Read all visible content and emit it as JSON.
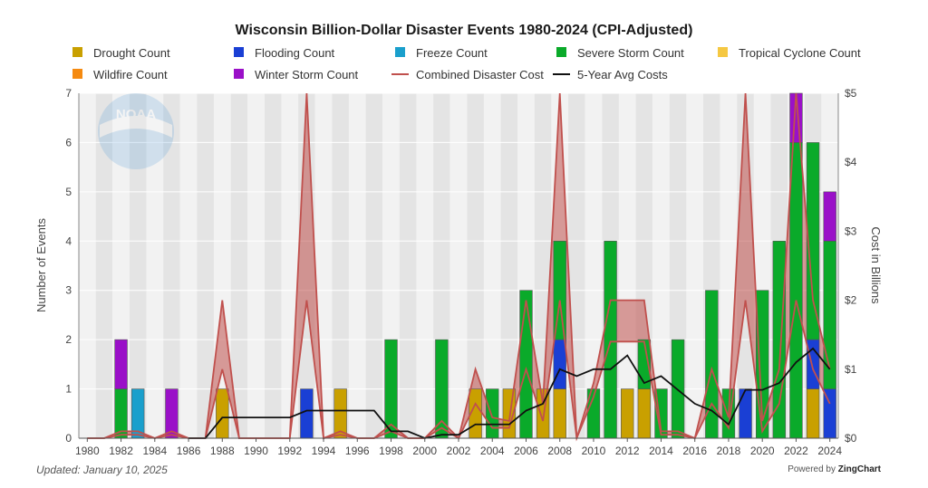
{
  "chart_data": {
    "type": "bar",
    "title": "Wisconsin Billion-Dollar Disaster Events 1980-2024 (CPI-Adjusted)",
    "ylabel": "Number of Events",
    "y2label": "Cost in Billions",
    "ylim": [
      0,
      7
    ],
    "y2lim": [
      0,
      5
    ],
    "y_ticks": [
      "0",
      "1",
      "2",
      "3",
      "4",
      "5",
      "6",
      "7"
    ],
    "y2_ticks": [
      "$0",
      "$1",
      "$2",
      "$3",
      "$4",
      "$5"
    ],
    "x": [
      1980,
      1981,
      1982,
      1983,
      1984,
      1985,
      1986,
      1987,
      1988,
      1989,
      1990,
      1991,
      1992,
      1993,
      1994,
      1995,
      1996,
      1997,
      1998,
      1999,
      2000,
      2001,
      2002,
      2003,
      2004,
      2005,
      2006,
      2007,
      2008,
      2009,
      2010,
      2011,
      2012,
      2013,
      2014,
      2015,
      2016,
      2017,
      2018,
      2019,
      2020,
      2021,
      2022,
      2023,
      2024
    ],
    "x_tick_labels": [
      "1980",
      "1982",
      "1984",
      "1986",
      "1988",
      "1990",
      "1992",
      "1994",
      "1996",
      "1998",
      "2000",
      "2002",
      "2004",
      "2006",
      "2008",
      "2010",
      "2012",
      "2014",
      "2016",
      "2018",
      "2020",
      "2022",
      "2024"
    ],
    "stacked": true,
    "series": [
      {
        "name": "Drought Count",
        "color": "#c9a000",
        "values": [
          0,
          0,
          0,
          0,
          0,
          0,
          0,
          0,
          1,
          0,
          0,
          0,
          0,
          0,
          0,
          1,
          0,
          0,
          0,
          0,
          0,
          0,
          0,
          1,
          0,
          1,
          0,
          1,
          1,
          0,
          0,
          0,
          1,
          1,
          0,
          0,
          0,
          0,
          0,
          0,
          0,
          0,
          0,
          1,
          0
        ]
      },
      {
        "name": "Flooding Count",
        "color": "#1a3fd4",
        "values": [
          0,
          0,
          0,
          0,
          0,
          0,
          0,
          0,
          0,
          0,
          0,
          0,
          0,
          1,
          0,
          0,
          0,
          0,
          0,
          0,
          0,
          0,
          0,
          0,
          0,
          0,
          0,
          0,
          1,
          0,
          0,
          0,
          0,
          0,
          0,
          0,
          0,
          0,
          0,
          1,
          0,
          0,
          0,
          1,
          1
        ]
      },
      {
        "name": "Freeze Count",
        "color": "#1a9fcc",
        "values": [
          0,
          0,
          0,
          1,
          0,
          0,
          0,
          0,
          0,
          0,
          0,
          0,
          0,
          0,
          0,
          0,
          0,
          0,
          0,
          0,
          0,
          0,
          0,
          0,
          0,
          0,
          0,
          0,
          0,
          0,
          0,
          0,
          0,
          0,
          0,
          0,
          0,
          0,
          0,
          0,
          0,
          0,
          0,
          0,
          0
        ]
      },
      {
        "name": "Severe Storm Count",
        "color": "#0aaa2a",
        "values": [
          0,
          0,
          1,
          0,
          0,
          0,
          0,
          0,
          0,
          0,
          0,
          0,
          0,
          0,
          0,
          0,
          0,
          0,
          2,
          0,
          0,
          2,
          0,
          0,
          1,
          0,
          3,
          0,
          2,
          0,
          1,
          4,
          0,
          1,
          1,
          2,
          0,
          3,
          1,
          0,
          3,
          4,
          6,
          4,
          3
        ]
      },
      {
        "name": "Tropical Cyclone Count",
        "color": "#f5c842",
        "values": [
          0,
          0,
          0,
          0,
          0,
          0,
          0,
          0,
          0,
          0,
          0,
          0,
          0,
          0,
          0,
          0,
          0,
          0,
          0,
          0,
          0,
          0,
          0,
          0,
          0,
          0,
          0,
          0,
          0,
          0,
          0,
          0,
          0,
          0,
          0,
          0,
          0,
          0,
          0,
          0,
          0,
          0,
          0,
          0,
          0
        ]
      },
      {
        "name": "Wildfire Count",
        "color": "#f58a10",
        "values": [
          0,
          0,
          0,
          0,
          0,
          0,
          0,
          0,
          0,
          0,
          0,
          0,
          0,
          0,
          0,
          0,
          0,
          0,
          0,
          0,
          0,
          0,
          0,
          0,
          0,
          0,
          0,
          0,
          0,
          0,
          0,
          0,
          0,
          0,
          0,
          0,
          0,
          0,
          0,
          0,
          0,
          0,
          0,
          0,
          0
        ]
      },
      {
        "name": "Winter Storm Count",
        "color": "#9a10c8",
        "values": [
          0,
          0,
          1,
          0,
          0,
          1,
          0,
          0,
          0,
          0,
          0,
          0,
          0,
          0,
          0,
          0,
          0,
          0,
          0,
          0,
          0,
          0,
          0,
          0,
          0,
          0,
          0,
          0,
          0,
          0,
          0,
          0,
          0,
          0,
          0,
          0,
          0,
          0,
          0,
          0,
          0,
          0,
          1,
          0,
          1
        ]
      }
    ],
    "lines": [
      {
        "name": "Combined Disaster Cost",
        "color": "#c0504d",
        "upper": [
          0,
          0,
          0.1,
          0.1,
          0,
          0.1,
          0,
          0,
          2.0,
          0,
          0,
          0,
          0,
          5.0,
          0,
          0.1,
          0,
          0,
          0.2,
          0,
          0,
          0.25,
          0,
          1.0,
          0.3,
          0.25,
          2.0,
          0.5,
          5.0,
          0,
          0.8,
          2.0,
          2.0,
          2.0,
          0.1,
          0.1,
          0,
          1.0,
          0.3,
          5.0,
          0.25,
          1.0,
          5.0,
          2.0,
          1.0
        ],
        "lower": [
          0,
          0,
          0.05,
          0.05,
          0,
          0.05,
          0,
          0,
          1.0,
          0,
          0,
          0,
          0,
          2.0,
          0,
          0.05,
          0,
          0,
          0.1,
          0,
          0,
          0.15,
          0,
          0.5,
          0.15,
          0.15,
          1.0,
          0.25,
          2.0,
          0,
          0.6,
          1.4,
          1.4,
          1.4,
          0.05,
          0.05,
          0,
          0.5,
          0.15,
          2.0,
          0.1,
          0.5,
          2.0,
          1.0,
          0.5
        ]
      },
      {
        "name": "5-Year Avg Costs",
        "color": "#111111",
        "values": [
          null,
          null,
          null,
          null,
          null,
          null,
          0,
          0,
          0.3,
          0.3,
          0.3,
          0.3,
          0.3,
          0.4,
          0.4,
          0.4,
          0.4,
          0.4,
          0.1,
          0.1,
          0,
          0.05,
          0.05,
          0.2,
          0.2,
          0.2,
          0.4,
          0.5,
          1.0,
          0.9,
          1.0,
          1.0,
          1.2,
          0.8,
          0.9,
          0.7,
          0.5,
          0.4,
          0.2,
          0.7,
          0.7,
          0.8,
          1.1,
          1.3,
          1.0
        ]
      }
    ],
    "legend_placement": "top",
    "grid": true
  },
  "footer": {
    "updated": "Updated: January 10, 2025",
    "powered_prefix": "Powered by ",
    "powered_brand": "ZingChart"
  },
  "logo": {
    "text": "NOAA"
  }
}
